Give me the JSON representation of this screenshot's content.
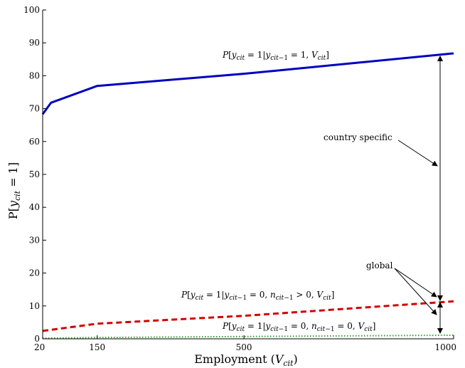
{
  "chart_data": {
    "type": "line",
    "title": "",
    "xlabel": {
      "main": "Employment (",
      "var": "V",
      "sub": "cit",
      "close": ")"
    },
    "ylabel": {
      "prefix": "P[",
      "var": "y",
      "sub": "cit",
      "suffix": " = 1]"
    },
    "xlim": [
      20,
      1000
    ],
    "ylim": [
      0,
      100
    ],
    "xticks": [
      20,
      150,
      500,
      1000
    ],
    "yticks": [
      0,
      10,
      20,
      30,
      40,
      50,
      60,
      70,
      80,
      90,
      100
    ],
    "grid": false,
    "series": [
      {
        "style": "solid",
        "color": "#0000c0",
        "x": [
          20,
          40,
          150,
          500,
          1000
        ],
        "y": [
          68.3,
          71.8,
          76.9,
          80.6,
          86.8
        ],
        "label": "P[y_cit = 1|y_cit−1 = 1, V_cit]"
      },
      {
        "style": "dashed",
        "color": "#d40000",
        "x": [
          20,
          150,
          500,
          1000
        ],
        "y": [
          2.4,
          4.6,
          7.0,
          11.4
        ],
        "label": "P[y_cit = 1|y_cit−1 = 0, n_cit−1 > 0, V_cit]"
      },
      {
        "style": "dotted",
        "color": "#2ca02c",
        "x": [
          20,
          150,
          500,
          1000
        ],
        "y": [
          0.2,
          0.4,
          0.7,
          1.1
        ],
        "label": "P[y_cit = 1|y_cit−1 = 0, n_cit−1 = 0, V_cit]"
      }
    ],
    "annotations": [
      {
        "text": "country specific"
      },
      {
        "text": "global"
      }
    ]
  }
}
